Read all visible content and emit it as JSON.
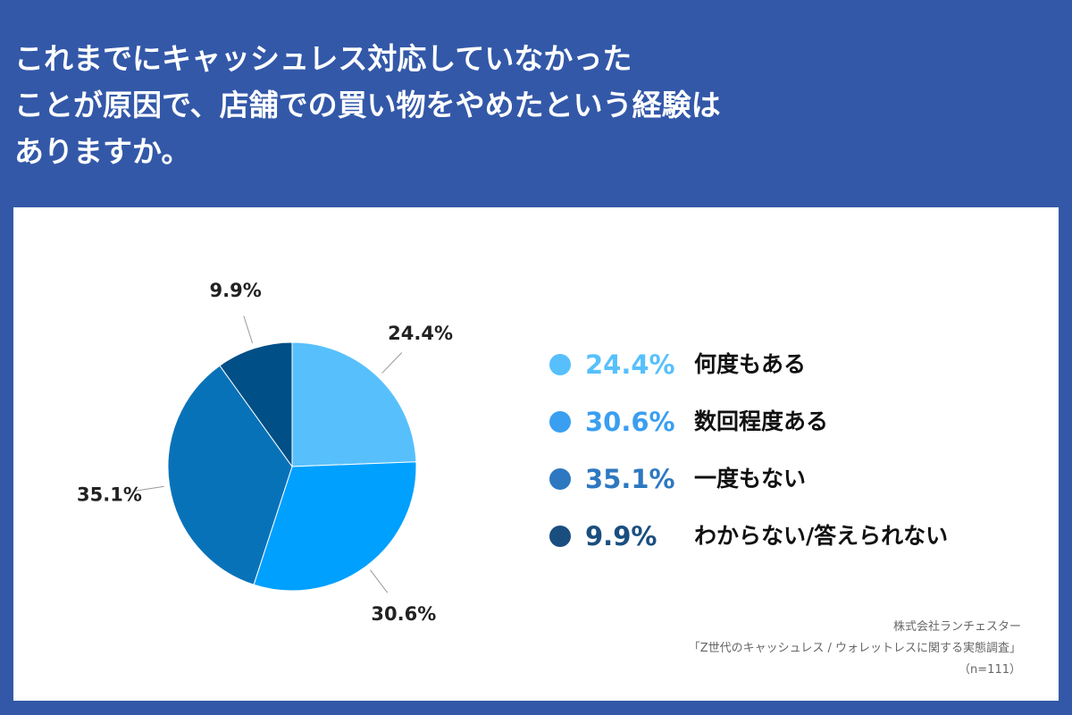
{
  "title": {
    "line1": "これまでにキャッシュレス対応していなかった",
    "line2": "ことが原因で、店舗での買い物をやめたという経験は",
    "line3": "ありますか。"
  },
  "chart_data": {
    "type": "pie",
    "slices": [
      {
        "label": "何度もある",
        "value": 24.4,
        "value_text": "24.4%",
        "color": "#57c0fc",
        "legend_color": "#57c0fc"
      },
      {
        "label": "数回程度ある",
        "value": 30.6,
        "value_text": "30.6%",
        "color": "#00a0ff",
        "legend_color": "#3a9ff0"
      },
      {
        "label": "一度もない",
        "value": 35.1,
        "value_text": "35.1%",
        "color": "#0872b9",
        "legend_color": "#2d78c0"
      },
      {
        "label": "わからない/答えられない",
        "value": 9.9,
        "value_text": "9.9%",
        "color": "#004f86",
        "legend_color": "#1a4e7f"
      }
    ],
    "legend_placement": "right"
  },
  "source": {
    "line1": "株式会社ランチェスター",
    "line2": "「Z世代のキャッシュレス / ウォレットレスに関する実態調査」",
    "line3": "（n=111）"
  }
}
